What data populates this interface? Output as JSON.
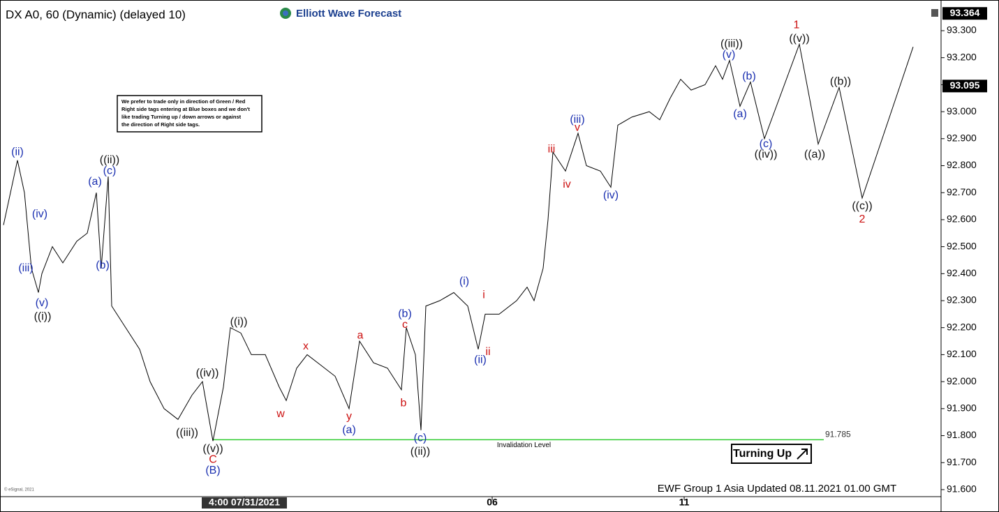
{
  "chart_data": {
    "type": "line",
    "title": "DX A0, 60 (Dynamic) (delayed 10)",
    "brand": "Elliott Wave Forecast",
    "note": [
      "We prefer to trade only in direction of Green / Red",
      "Right side tags entering at Blue boxes and we don't",
      "like trading Turning up / down arrows or against",
      "the direction of Right side tags."
    ],
    "footer": "EWF Group 1 Asia Updated 08.11.2021 01.00 GMT",
    "copyright": "© eSignal, 2021",
    "badge": "Turning Up",
    "xlim": [
      0,
      268
    ],
    "xticks": [
      {
        "value": 69,
        "label": "4:00 07/31/2021"
      },
      {
        "value": 140,
        "label": "06"
      },
      {
        "value": 195,
        "label": "11"
      }
    ],
    "ylim": [
      91.574,
      93.393
    ],
    "yticks": [
      {
        "value": 91.6,
        "label": "91.600"
      },
      {
        "value": 91.7,
        "label": "91.700"
      },
      {
        "value": 91.8,
        "label": "91.800"
      },
      {
        "value": 91.9,
        "label": "91.900"
      },
      {
        "value": 92.0,
        "label": "92.000"
      },
      {
        "value": 92.1,
        "label": "92.100"
      },
      {
        "value": 92.2,
        "label": "92.200"
      },
      {
        "value": 92.3,
        "label": "92.300"
      },
      {
        "value": 92.4,
        "label": "92.400"
      },
      {
        "value": 92.5,
        "label": "92.500"
      },
      {
        "value": 92.6,
        "label": "92.600"
      },
      {
        "value": 92.7,
        "label": "92.700"
      },
      {
        "value": 92.8,
        "label": "92.800"
      },
      {
        "value": 92.9,
        "label": "92.900"
      },
      {
        "value": 93.0,
        "label": "93.000"
      },
      {
        "value": 93.1,
        "label": "93.100"
      },
      {
        "value": 93.2,
        "label": "93.200"
      },
      {
        "value": 93.3,
        "label": "93.300"
      }
    ],
    "price_tags": [
      93.364,
      93.095
    ],
    "invalidation": {
      "value": 91.785,
      "label": "Invalidation Level",
      "x_start": 60,
      "x_end": 235,
      "color": "#33cc33"
    },
    "series": [
      {
        "color": "#000000",
        "x": [
          0,
          4,
          6,
          8,
          10,
          11,
          14,
          17,
          21,
          24,
          26.6,
          28,
          30,
          31,
          35,
          39,
          42,
          46,
          50,
          54,
          57,
          60,
          63,
          65,
          68,
          71,
          75,
          79,
          81,
          84,
          87,
          91,
          95,
          99,
          102,
          106,
          110,
          114,
          115.4,
          118,
          119.6,
          121,
          125,
          129,
          133,
          136,
          138,
          142,
          147,
          150,
          152,
          154.6,
          156,
          157.4,
          161,
          164.6,
          167,
          171,
          174,
          176,
          180,
          185,
          188,
          191,
          194,
          197,
          201
        ],
        "values": [
          92.58,
          92.82,
          92.7,
          92.42,
          92.33,
          92.4,
          92.5,
          92.44,
          92.52,
          92.55,
          92.7,
          92.42,
          92.76,
          92.28,
          92.2,
          92.12,
          92.0,
          91.9,
          91.86,
          91.95,
          92.0,
          91.78,
          91.98,
          92.2,
          92.18,
          92.1,
          92.1,
          91.98,
          91.93,
          92.05,
          92.1,
          92.06,
          92.02,
          91.9,
          92.15,
          92.07,
          92.05,
          91.97,
          92.2,
          92.1,
          91.82,
          92.28,
          92.3,
          92.33,
          92.28,
          92.12,
          92.25,
          92.25,
          92.3,
          92.35,
          92.3,
          92.42,
          92.6,
          92.85,
          92.78,
          92.92,
          92.8,
          92.78,
          92.72,
          92.95,
          92.98,
          93.0,
          92.97,
          93.05,
          93.12,
          93.08,
          93.1
        ]
      },
      {
        "color": "#000000",
        "x": [
          201,
          204,
          206,
          208,
          211,
          214,
          218,
          228,
          233.4,
          239.4,
          246,
          260.6
        ],
        "values": [
          93.1,
          93.17,
          93.12,
          93.19,
          93.02,
          93.11,
          92.9,
          93.25,
          92.88,
          93.09,
          92.68,
          93.24
        ]
      }
    ],
    "wave_labels": [
      {
        "text": "(ii)",
        "x": 4,
        "y": 92.85,
        "color": "#1a2fb0"
      },
      {
        "text": "(iv)",
        "x": 10.4,
        "y": 92.62,
        "color": "#1a2fb0"
      },
      {
        "text": "(iii)",
        "x": 6.4,
        "y": 92.42,
        "color": "#1a2fb0"
      },
      {
        "text": "(v)",
        "x": 11,
        "y": 92.29,
        "color": "#1a2fb0"
      },
      {
        "text": "((i))",
        "x": 11.2,
        "y": 92.24,
        "color": "#111111"
      },
      {
        "text": "(a)",
        "x": 26.2,
        "y": 92.74,
        "color": "#1a2fb0"
      },
      {
        "text": "((ii))",
        "x": 30.4,
        "y": 92.82,
        "color": "#111111"
      },
      {
        "text": "(c)",
        "x": 30.4,
        "y": 92.78,
        "color": "#1a2fb0"
      },
      {
        "text": "(b)",
        "x": 28.4,
        "y": 92.43,
        "color": "#1a2fb0"
      },
      {
        "text": "((iii))",
        "x": 52.6,
        "y": 91.81,
        "color": "#111111"
      },
      {
        "text": "((iv))",
        "x": 58.4,
        "y": 92.03,
        "color": "#111111"
      },
      {
        "text": "((v))",
        "x": 60,
        "y": 91.75,
        "color": "#111111"
      },
      {
        "text": "C",
        "x": 60,
        "y": 91.71,
        "color": "#cc1111"
      },
      {
        "text": "(B)",
        "x": 60,
        "y": 91.67,
        "color": "#1a2fb0"
      },
      {
        "text": "((i))",
        "x": 67.4,
        "y": 92.22,
        "color": "#111111"
      },
      {
        "text": "w",
        "x": 79.4,
        "y": 91.88,
        "color": "#cc1111"
      },
      {
        "text": "x",
        "x": 86.6,
        "y": 92.13,
        "color": "#cc1111"
      },
      {
        "text": "a",
        "x": 102.2,
        "y": 92.17,
        "color": "#cc1111"
      },
      {
        "text": "y",
        "x": 99,
        "y": 91.87,
        "color": "#cc1111"
      },
      {
        "text": "(a)",
        "x": 99,
        "y": 91.82,
        "color": "#1a2fb0"
      },
      {
        "text": "(b)",
        "x": 115,
        "y": 92.25,
        "color": "#1a2fb0"
      },
      {
        "text": "c",
        "x": 115,
        "y": 92.21,
        "color": "#cc1111"
      },
      {
        "text": "b",
        "x": 114.6,
        "y": 91.92,
        "color": "#cc1111"
      },
      {
        "text": "(c)",
        "x": 119.4,
        "y": 91.79,
        "color": "#1a2fb0"
      },
      {
        "text": "((ii))",
        "x": 119.4,
        "y": 91.74,
        "color": "#111111"
      },
      {
        "text": "(i)",
        "x": 132,
        "y": 92.37,
        "color": "#1a2fb0"
      },
      {
        "text": "i",
        "x": 137.6,
        "y": 92.32,
        "color": "#cc1111"
      },
      {
        "text": "ii",
        "x": 138.8,
        "y": 92.11,
        "color": "#cc1111"
      },
      {
        "text": "(ii)",
        "x": 136.6,
        "y": 92.08,
        "color": "#1a2fb0"
      },
      {
        "text": "iii",
        "x": 157,
        "y": 92.86,
        "color": "#cc1111"
      },
      {
        "text": "iv",
        "x": 161.4,
        "y": 92.73,
        "color": "#cc1111"
      },
      {
        "text": "(iii)",
        "x": 164.4,
        "y": 92.97,
        "color": "#1a2fb0"
      },
      {
        "text": "v",
        "x": 164.4,
        "y": 92.94,
        "color": "#cc1111"
      },
      {
        "text": "(iv)",
        "x": 174,
        "y": 92.69,
        "color": "#1a2fb0"
      },
      {
        "text": "((iii))",
        "x": 208.6,
        "y": 93.25,
        "color": "#111111"
      },
      {
        "text": "(v)",
        "x": 207.8,
        "y": 93.21,
        "color": "#1a2fb0"
      },
      {
        "text": "(b)",
        "x": 213.6,
        "y": 93.13,
        "color": "#1a2fb0"
      },
      {
        "text": "(a)",
        "x": 211,
        "y": 92.99,
        "color": "#1a2fb0"
      },
      {
        "text": "(c)",
        "x": 218.4,
        "y": 92.88,
        "color": "#1a2fb0"
      },
      {
        "text": "((iv))",
        "x": 218.4,
        "y": 92.84,
        "color": "#111111"
      },
      {
        "text": "1",
        "x": 227.2,
        "y": 93.32,
        "color": "#cc1111"
      },
      {
        "text": "((v))",
        "x": 228,
        "y": 93.27,
        "color": "#111111"
      },
      {
        "text": "((b))",
        "x": 239.8,
        "y": 93.11,
        "color": "#111111"
      },
      {
        "text": "((a))",
        "x": 232.4,
        "y": 92.84,
        "color": "#111111"
      },
      {
        "text": "((c))",
        "x": 246,
        "y": 92.65,
        "color": "#111111"
      },
      {
        "text": "2",
        "x": 246,
        "y": 92.6,
        "color": "#cc1111"
      }
    ]
  }
}
